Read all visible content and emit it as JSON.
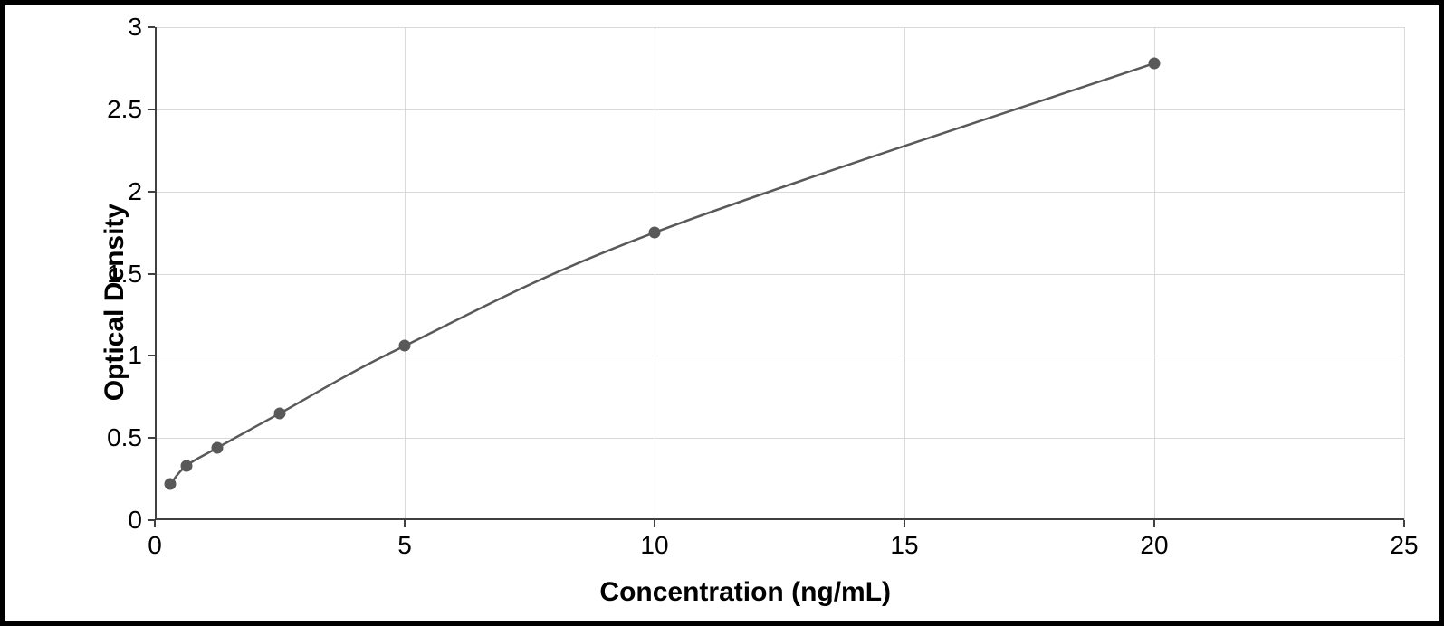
{
  "chart": {
    "type": "line-scatter",
    "x_axis_title": "Concentration (ng/mL)",
    "y_axis_title": "Optical Density",
    "title_fontsize": 30,
    "tick_fontsize": 28,
    "xlim": [
      0,
      25
    ],
    "ylim": [
      0,
      3
    ],
    "xtick_step": 5,
    "ytick_step": 0.5,
    "xticks": [
      0,
      5,
      10,
      15,
      20,
      25
    ],
    "yticks": [
      0,
      0.5,
      1,
      1.5,
      2,
      2.5,
      3
    ],
    "grid_color": "#d9d9d9",
    "axis_color": "#404040",
    "background_color": "#ffffff",
    "line_color": "#595959",
    "line_width": 2.5,
    "marker_color": "#595959",
    "marker_size": 13,
    "marker_style": "circle",
    "data": {
      "x": [
        0.313,
        0.625,
        1.25,
        2.5,
        5,
        10,
        20
      ],
      "y": [
        0.22,
        0.33,
        0.44,
        0.65,
        1.06,
        1.75,
        2.78
      ]
    },
    "frame_border_color": "#000000",
    "frame_border_width": 6
  }
}
